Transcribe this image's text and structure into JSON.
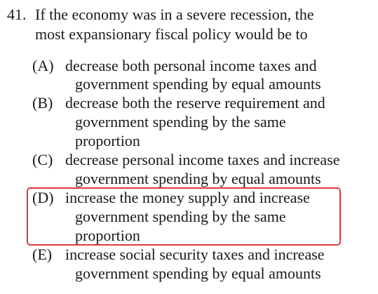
{
  "question": {
    "number": "41.",
    "stem_line1": "If the economy was in a severe recession, the",
    "stem_line2": "most expansionary fiscal policy would be to"
  },
  "options": [
    {
      "letter": "(A)",
      "lines": [
        "decrease both personal income taxes and",
        "government spending by equal amounts"
      ]
    },
    {
      "letter": "(B)",
      "lines": [
        "decrease both the reserve requirement and",
        "government spending by the same",
        "proportion"
      ]
    },
    {
      "letter": "(C)",
      "lines": [
        "decrease personal income taxes and increase",
        "government spending by equal amounts"
      ]
    },
    {
      "letter": "(D)",
      "lines": [
        "increase the money supply and increase",
        "government spending by the same",
        "proportion"
      ],
      "highlighted": true
    },
    {
      "letter": "(E)",
      "lines": [
        "increase social security taxes and increase",
        "government spending by equal amounts"
      ]
    }
  ],
  "colors": {
    "highlight_border": "#e03a3a",
    "text": "#1a1a1a"
  }
}
